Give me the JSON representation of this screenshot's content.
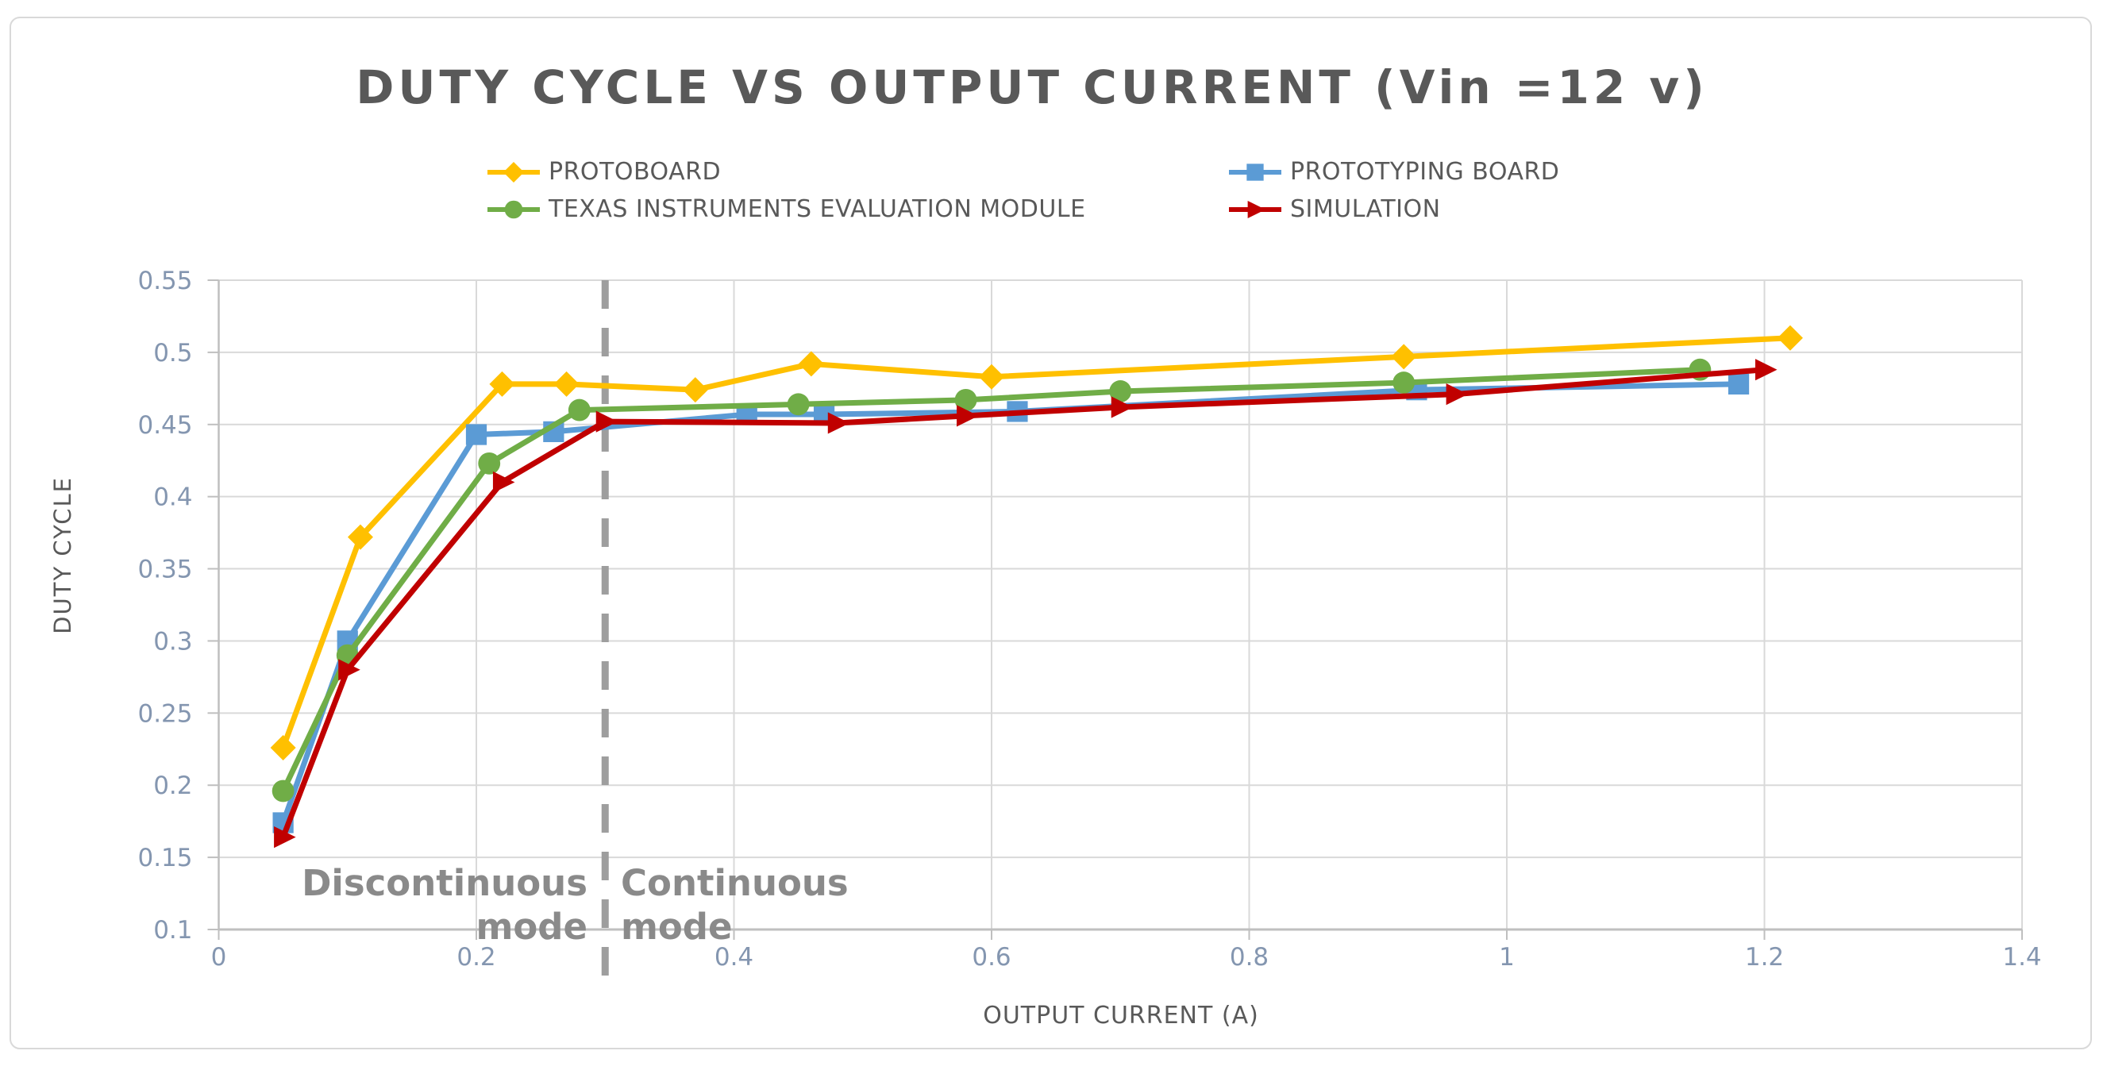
{
  "title": "DUTY CYCLE VS OUTPUT CURRENT (Vin =12 v)",
  "axes": {
    "x_title": "OUTPUT CURRENT (A)",
    "y_title": "DUTY CYCLE"
  },
  "annotations": {
    "left": [
      "Discontinuous",
      "mode"
    ],
    "right": [
      "Continuous",
      "mode"
    ],
    "divider_x": 0.3
  },
  "colors": {
    "title_text": "#595959",
    "legend_text": "#595959",
    "tick_label": "#8496B0",
    "gridline": "#D9D9D9",
    "axis_line": "#BFBFBF",
    "chart_border": "#D9D9D9",
    "annotation_text": "#8A8A8A",
    "divider_line": "#9E9E9E"
  },
  "chart_data": {
    "type": "line",
    "title": "DUTY CYCLE VS OUTPUT CURRENT (Vin =12 v)",
    "xlabel": "OUTPUT CURRENT (A)",
    "ylabel": "DUTY CYCLE",
    "xlim": [
      0,
      1.4
    ],
    "ylim": [
      0.1,
      0.55
    ],
    "x_ticks": [
      0,
      0.2,
      0.4,
      0.6,
      0.8,
      1,
      1.2,
      1.4
    ],
    "y_ticks": [
      0.1,
      0.15,
      0.2,
      0.25,
      0.3,
      0.35,
      0.4,
      0.45,
      0.5,
      0.55
    ],
    "grid": true,
    "legend_position": "top",
    "annotation_line": {
      "x": 0.3,
      "style": "dashed"
    },
    "series": [
      {
        "name": "PROTOBOARD",
        "color": "#FFC000",
        "marker": "diamond",
        "points": [
          [
            0.05,
            0.226
          ],
          [
            0.11,
            0.372
          ],
          [
            0.22,
            0.478
          ],
          [
            0.27,
            0.478
          ],
          [
            0.37,
            0.474
          ],
          [
            0.46,
            0.492
          ],
          [
            0.6,
            0.483
          ],
          [
            0.92,
            0.497
          ],
          [
            1.22,
            0.51
          ]
        ]
      },
      {
        "name": "PROTOTYPING BOARD",
        "color": "#5B9BD5",
        "marker": "square",
        "points": [
          [
            0.05,
            0.174
          ],
          [
            0.1,
            0.3
          ],
          [
            0.2,
            0.443
          ],
          [
            0.26,
            0.445
          ],
          [
            0.41,
            0.457
          ],
          [
            0.47,
            0.457
          ],
          [
            0.62,
            0.459
          ],
          [
            0.93,
            0.474
          ],
          [
            1.18,
            0.478
          ]
        ]
      },
      {
        "name": "TEXAS INSTRUMENTS EVALUATION MODULE",
        "color": "#70AD47",
        "marker": "circle",
        "points": [
          [
            0.05,
            0.196
          ],
          [
            0.1,
            0.29
          ],
          [
            0.21,
            0.423
          ],
          [
            0.28,
            0.46
          ],
          [
            0.45,
            0.464
          ],
          [
            0.58,
            0.467
          ],
          [
            0.7,
            0.473
          ],
          [
            0.92,
            0.479
          ],
          [
            1.15,
            0.488
          ]
        ]
      },
      {
        "name": "SIMULATION",
        "color": "#C00000",
        "marker": "triangle-right",
        "points": [
          [
            0.05,
            0.164
          ],
          [
            0.1,
            0.28
          ],
          [
            0.22,
            0.41
          ],
          [
            0.3,
            0.452
          ],
          [
            0.48,
            0.451
          ],
          [
            0.58,
            0.456
          ],
          [
            0.7,
            0.462
          ],
          [
            0.96,
            0.471
          ],
          [
            1.2,
            0.488
          ]
        ]
      }
    ]
  }
}
